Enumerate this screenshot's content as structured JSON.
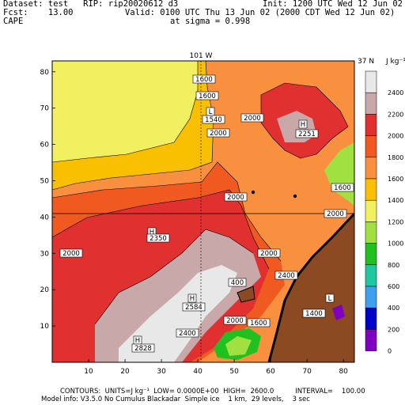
{
  "header": {
    "dataset": "Dataset: test   RIP: rip20020612 d3",
    "init": "Init: 1200 UTC Wed 12 Jun 02",
    "fcst": "Fcst:    13.00",
    "valid": "Valid: 0100 UTC Thu 13 Jun 02 (2000 CDT Wed 12 Jun 02)",
    "field": "CAPE",
    "sigma": "at sigma = 0.998"
  },
  "map": {
    "top_label_lon": "101 W",
    "right_label_lat": "37 N",
    "x_ticks": [
      "10",
      "20",
      "30",
      "40",
      "50",
      "60",
      "70",
      "80"
    ],
    "y_ticks": [
      "10",
      "20",
      "30",
      "40",
      "50",
      "60",
      "70",
      "80"
    ],
    "contour_labels": [
      {
        "text": "1600"
      },
      {
        "text": "1600"
      },
      {
        "text": "L"
      },
      {
        "text": "1540"
      },
      {
        "text": "2000"
      },
      {
        "text": "2000"
      },
      {
        "text": "H"
      },
      {
        "text": "2251"
      },
      {
        "text": "2000"
      },
      {
        "text": "1600"
      },
      {
        "text": "2000"
      },
      {
        "text": "H"
      },
      {
        "text": "2350"
      },
      {
        "text": "2000"
      },
      {
        "text": "2000"
      },
      {
        "text": "2400"
      },
      {
        "text": "400"
      },
      {
        "text": "H"
      },
      {
        "text": "2584"
      },
      {
        "text": "2000"
      },
      {
        "text": "1600"
      },
      {
        "text": "1400"
      },
      {
        "text": "L"
      },
      {
        "text": "2400"
      },
      {
        "text": "H"
      },
      {
        "text": "2828"
      }
    ]
  },
  "legend": {
    "unit": "J kg⁻¹",
    "entries": [
      {
        "value": "2400",
        "color": "#e8e8e8"
      },
      {
        "value": "2200",
        "color": "#c8a8a8"
      },
      {
        "value": "2000",
        "color": "#e03030"
      },
      {
        "value": "1800",
        "color": "#f05a20"
      },
      {
        "value": "1600",
        "color": "#f89040"
      },
      {
        "value": "1400",
        "color": "#f8c000"
      },
      {
        "value": "1200",
        "color": "#f0f060"
      },
      {
        "value": "1000",
        "color": "#a0e040"
      },
      {
        "value": "800",
        "color": "#20c020"
      },
      {
        "value": "600",
        "color": "#20c8a0"
      },
      {
        "value": "400",
        "color": "#40a0f0"
      },
      {
        "value": "200",
        "color": "#0000c8"
      },
      {
        "value": "0",
        "color": "#8000c0"
      }
    ],
    "extra_colors": [
      "#c040c0",
      "#ffffff"
    ]
  },
  "footer": {
    "line1": "CONTOURS:  UNITS=J kg⁻¹  LOW= 0.0000E+00  HIGH=  2600.0          INTERVAL=    100.00",
    "line2": "Model info: V3.5.0 No Cumulus Blackadar  Simple ice    1 km,  29 levels,    3 sec"
  },
  "colors": {
    "terrain": "#8b4a22",
    "brown_border": "#000000"
  }
}
